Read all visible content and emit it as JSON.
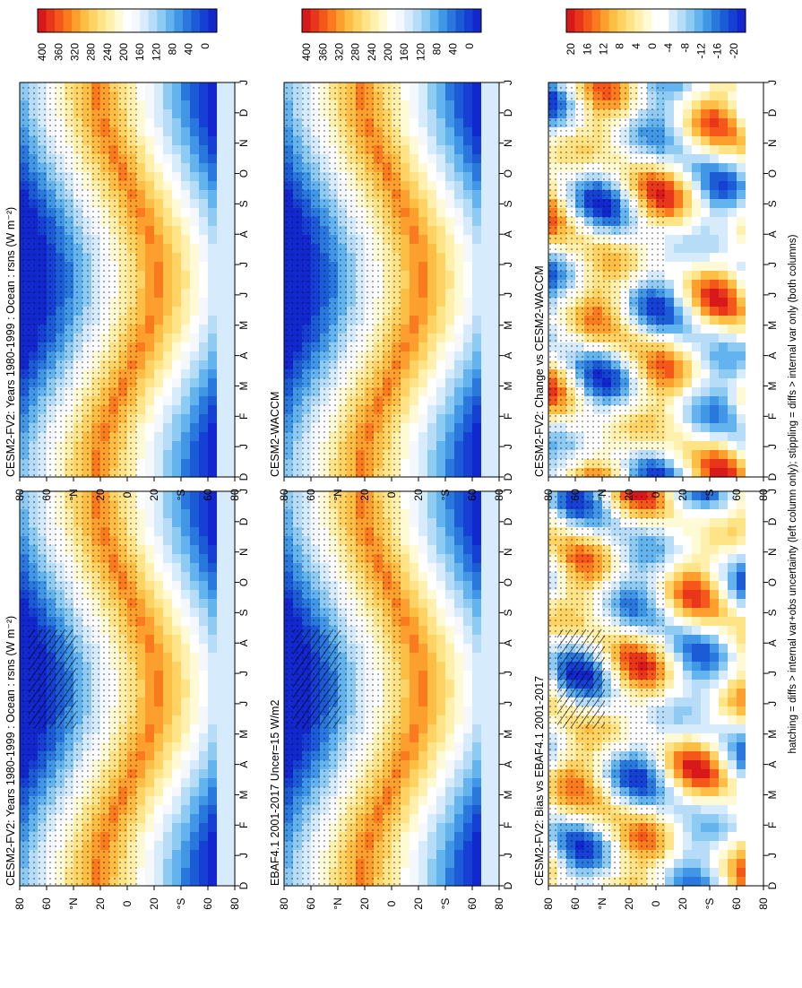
{
  "footnote": "hatching = diffs > internal var+obs uncertainty (left column only); stippling = diffs > internal var only (both columns)",
  "months": [
    "D",
    "J",
    "F",
    "M",
    "A",
    "M",
    "J",
    "J",
    "A",
    "S",
    "O",
    "N",
    "D",
    "J"
  ],
  "lat_ticks": [
    "80",
    "60",
    "°N",
    "20",
    "0",
    "20",
    "°S",
    "60",
    "80"
  ],
  "colorbars": {
    "abs": {
      "labels": [
        "400",
        "360",
        "320",
        "280",
        "240",
        "200",
        "160",
        "120",
        "80",
        "40",
        "0"
      ],
      "colors": [
        "#d7191c",
        "#e8361a",
        "#f5561a",
        "#fa7b1e",
        "#fc9f2e",
        "#fdbe45",
        "#fed363",
        "#fee387",
        "#fff0ad",
        "#fffad6",
        "#ffffff",
        "#f4f8fd",
        "#d6ebfb",
        "#b6dcf7",
        "#8ecbf3",
        "#63b4ee",
        "#4197e6",
        "#2a78dd",
        "#1c5bd6",
        "#1540d3",
        "#1327cf"
      ]
    },
    "diff": {
      "labels": [
        "20",
        "16",
        "12",
        "8",
        "4",
        "0",
        "-4",
        "-8",
        "-12",
        "-16",
        "-20"
      ],
      "colors": [
        "#d7191c",
        "#e8361a",
        "#f5561a",
        "#fa7b1e",
        "#fc9f2e",
        "#fdbe45",
        "#fed363",
        "#fee387",
        "#fff0ad",
        "#fffad6",
        "#ffffff",
        "#ffffff",
        "#d6ebfb",
        "#b6dcf7",
        "#8ecbf3",
        "#63b4ee",
        "#4197e6",
        "#2a78dd",
        "#1c5bd6",
        "#1540d3",
        "#1327cf"
      ]
    }
  },
  "chart_data": [
    {
      "type": "heatmap",
      "panel": "top-left",
      "title": "CESM2-FV2: Years 1980-1999 : Ocean : rsns (W m⁻²)",
      "kind": "abs",
      "hatching": true,
      "stippling": true
    },
    {
      "type": "heatmap",
      "panel": "top-right",
      "title": "CESM2-FV2: Years 1980-1999 : Ocean : rsns (W m⁻²)",
      "kind": "abs",
      "hatching": false,
      "stippling": true
    },
    {
      "type": "heatmap",
      "panel": "middle-left",
      "title": "EBAF4.1 2001-2017 Uncer=15 W/m2",
      "kind": "abs",
      "hatching": true,
      "stippling": true
    },
    {
      "type": "heatmap",
      "panel": "middle-right",
      "title": "CESM2-WACCM",
      "kind": "abs",
      "hatching": false,
      "stippling": true
    },
    {
      "type": "heatmap",
      "panel": "bottom-left",
      "title": "CESM2-FV2: Bias vs EBAF4.1 2001-2017",
      "kind": "diff",
      "hatching": true,
      "stippling": true
    },
    {
      "type": "heatmap",
      "panel": "bottom-right",
      "title": "CESM2-FV2: Change vs CESM2-WACCM",
      "kind": "diff",
      "hatching": false,
      "stippling": true
    }
  ]
}
